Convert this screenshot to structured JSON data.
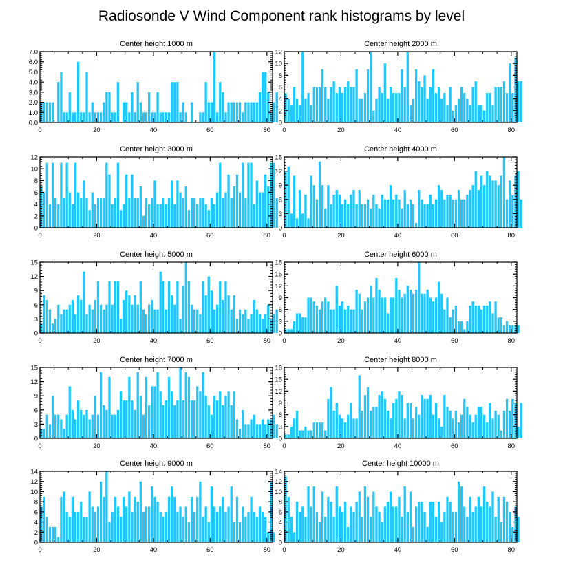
{
  "title": "Radiosonde V Wind Component rank histograms by level",
  "colors": {
    "bar": "#1ec8ff",
    "bar_edge": "#ffffff",
    "frame": "#000000",
    "background": "#ffffff"
  },
  "chart_data": [
    {
      "type": "bar",
      "title": "Center height 1000 m",
      "xlim": [
        0,
        82
      ],
      "ylim": [
        0,
        7
      ],
      "xticks": [
        0,
        20,
        40,
        60,
        80
      ],
      "yticks": [
        0,
        1,
        2,
        3,
        4,
        5,
        6,
        7
      ],
      "ytick_labels": [
        "0.0",
        "1.0",
        "2.0",
        "3.0",
        "4.0",
        "5.0",
        "6.0",
        "7.0"
      ],
      "values": [
        2,
        2,
        2,
        2,
        2,
        0,
        4,
        5,
        1,
        1,
        3,
        1,
        1,
        6,
        1,
        1,
        5,
        1,
        2,
        1,
        1,
        1,
        2,
        3,
        3,
        1,
        1,
        4,
        0,
        2,
        2,
        1,
        3,
        1,
        4,
        2,
        1,
        1,
        3,
        1,
        1,
        3,
        1,
        1,
        1,
        1,
        4,
        4,
        4,
        1,
        2,
        1,
        0,
        2,
        0,
        0,
        1,
        1,
        4,
        2,
        2,
        7,
        1,
        4,
        3,
        1,
        2,
        2,
        2,
        2,
        2,
        1,
        2,
        2,
        2,
        2,
        2,
        3,
        5,
        5,
        3,
        1,
        2,
        3
      ]
    },
    {
      "type": "bar",
      "title": "Center height 2000 m",
      "xlim": [
        0,
        82
      ],
      "ylim": [
        0,
        12
      ],
      "xticks": [
        0,
        20,
        40,
        60,
        80
      ],
      "yticks": [
        0,
        2,
        4,
        6,
        8,
        10,
        12
      ],
      "ytick_labels": [
        "0",
        "2",
        "4",
        "6",
        "8",
        "10",
        "12"
      ],
      "values": [
        5,
        4,
        3,
        6,
        4,
        3,
        12,
        4,
        5,
        3,
        6,
        6,
        6,
        9,
        6,
        4,
        6,
        7,
        5,
        6,
        5,
        6,
        7,
        6,
        6,
        9,
        4,
        4,
        5,
        9,
        12,
        2,
        4,
        6,
        5,
        10,
        4,
        6,
        5,
        5,
        5,
        9,
        6,
        12,
        3,
        4,
        9,
        7,
        6,
        8,
        4,
        6,
        9,
        5,
        6,
        4,
        5,
        3,
        6,
        2,
        3,
        4,
        6,
        5,
        4,
        3,
        6,
        7,
        3,
        3,
        2,
        5,
        5,
        3,
        6,
        6,
        6,
        7,
        5,
        10,
        5,
        11,
        7,
        7
      ]
    },
    {
      "type": "bar",
      "title": "Center height 3000 m",
      "xlim": [
        0,
        82
      ],
      "ylim": [
        0,
        12
      ],
      "xticks": [
        0,
        20,
        40,
        60,
        80
      ],
      "yticks": [
        0,
        2,
        4,
        6,
        8,
        10,
        12
      ],
      "ytick_labels": [
        "0",
        "2",
        "4",
        "6",
        "8",
        "10",
        "12"
      ],
      "values": [
        7,
        6,
        11,
        4,
        11,
        5,
        4,
        11,
        5,
        11,
        6,
        4,
        11,
        6,
        5,
        8,
        5,
        3,
        6,
        4,
        5,
        5,
        5,
        11,
        9,
        4,
        5,
        11,
        3,
        4,
        9,
        5,
        9,
        5,
        5,
        7,
        2,
        5,
        4,
        5,
        8,
        4,
        4,
        5,
        4,
        5,
        8,
        4,
        8,
        6,
        5,
        7,
        3,
        5,
        5,
        4,
        5,
        5,
        4,
        3,
        5,
        4,
        6,
        11,
        5,
        6,
        9,
        5,
        7,
        9,
        6,
        11,
        5,
        11,
        11,
        4,
        8,
        6,
        6,
        9,
        7,
        11,
        11,
        5
      ]
    },
    {
      "type": "bar",
      "title": "Center height 4000 m",
      "xlim": [
        0,
        82
      ],
      "ylim": [
        0,
        15
      ],
      "xticks": [
        0,
        20,
        40,
        60,
        80
      ],
      "yticks": [
        0,
        3,
        6,
        9,
        12,
        15
      ],
      "ytick_labels": [
        "0",
        "3",
        "6",
        "9",
        "12",
        "15"
      ],
      "values": [
        12,
        13,
        3,
        11,
        2,
        8,
        3,
        7,
        2,
        11,
        9,
        6,
        14,
        9,
        4,
        9,
        5,
        7,
        8,
        7,
        5,
        6,
        5,
        7,
        8,
        5,
        8,
        5,
        5,
        6,
        4,
        7,
        5,
        4,
        7,
        6,
        6,
        9,
        6,
        7,
        6,
        4,
        8,
        5,
        6,
        5,
        1,
        8,
        6,
        5,
        5,
        7,
        5,
        6,
        9,
        8,
        6,
        7,
        7,
        6,
        6,
        8,
        6,
        6,
        7,
        8,
        9,
        12,
        8,
        11,
        9,
        12,
        11,
        10,
        10,
        9,
        11,
        15,
        6,
        10,
        7,
        11,
        12,
        6
      ]
    },
    {
      "type": "bar",
      "title": "Center height 5000 m",
      "xlim": [
        0,
        82
      ],
      "ylim": [
        0,
        15
      ],
      "xticks": [
        0,
        20,
        40,
        60,
        80
      ],
      "yticks": [
        0,
        3,
        6,
        9,
        12,
        15
      ],
      "ytick_labels": [
        "0",
        "3",
        "6",
        "9",
        "12",
        "15"
      ],
      "values": [
        2,
        8,
        7,
        5,
        2,
        3,
        6,
        4,
        5,
        5,
        6,
        7,
        4,
        8,
        7,
        13,
        4,
        6,
        5,
        7,
        11,
        6,
        5,
        6,
        11,
        6,
        11,
        11,
        3,
        7,
        9,
        8,
        6,
        8,
        6,
        11,
        5,
        4,
        6,
        7,
        5,
        5,
        13,
        11,
        5,
        11,
        8,
        6,
        11,
        3,
        10,
        15,
        11,
        6,
        5,
        5,
        4,
        11,
        8,
        12,
        9,
        5,
        6,
        11,
        7,
        11,
        8,
        5,
        8,
        3,
        5,
        4,
        5,
        3,
        4,
        7,
        5,
        4,
        3,
        4,
        6,
        3,
        4,
        5
      ]
    },
    {
      "type": "bar",
      "title": "Center height 6000 m",
      "xlim": [
        0,
        82
      ],
      "ylim": [
        0,
        18
      ],
      "xticks": [
        0,
        20,
        40,
        60,
        80
      ],
      "yticks": [
        0,
        3,
        6,
        9,
        12,
        15,
        18
      ],
      "ytick_labels": [
        "0",
        "3",
        "6",
        "9",
        "12",
        "15",
        "18"
      ],
      "values": [
        1,
        1,
        1,
        3,
        5,
        5,
        4,
        4,
        9,
        9,
        8,
        7,
        6,
        8,
        9,
        8,
        6,
        6,
        12,
        7,
        8,
        6,
        7,
        6,
        6,
        11,
        10,
        6,
        8,
        9,
        12,
        9,
        14,
        11,
        9,
        9,
        5,
        9,
        9,
        14,
        11,
        9,
        10,
        12,
        11,
        10,
        11,
        18,
        10,
        10,
        11,
        9,
        8,
        9,
        13,
        10,
        6,
        9,
        4,
        6,
        7,
        3,
        3,
        1,
        3,
        7,
        8,
        7,
        7,
        6,
        7,
        7,
        8,
        5,
        8,
        4,
        4,
        2,
        3,
        2,
        2,
        2,
        2
      ]
    },
    {
      "type": "bar",
      "title": "Center height 7000 m",
      "xlim": [
        0,
        82
      ],
      "ylim": [
        0,
        15
      ],
      "xticks": [
        0,
        20,
        40,
        60,
        80
      ],
      "yticks": [
        0,
        3,
        6,
        9,
        12,
        15
      ],
      "ytick_labels": [
        "0",
        "3",
        "6",
        "9",
        "12",
        "15"
      ],
      "values": [
        2,
        2,
        5,
        3,
        9,
        5,
        5,
        4,
        2,
        5,
        11,
        6,
        4,
        8,
        6,
        5,
        6,
        4,
        5,
        9,
        5,
        14,
        7,
        6,
        13,
        5,
        5,
        6,
        10,
        8,
        8,
        13,
        8,
        6,
        14,
        9,
        5,
        13,
        7,
        11,
        11,
        14,
        10,
        7,
        8,
        13,
        10,
        7,
        8,
        15,
        8,
        14,
        13,
        8,
        8,
        11,
        10,
        14,
        9,
        7,
        5,
        9,
        8,
        10,
        7,
        9,
        10,
        7,
        10,
        4,
        2,
        6,
        3,
        3,
        4,
        5,
        3,
        3,
        4,
        3,
        4,
        4,
        5,
        3
      ]
    },
    {
      "type": "bar",
      "title": "Center height 8000 m",
      "xlim": [
        0,
        82
      ],
      "ylim": [
        0,
        18
      ],
      "xticks": [
        0,
        20,
        40,
        60,
        80
      ],
      "yticks": [
        0,
        3,
        6,
        9,
        12,
        15,
        18
      ],
      "ytick_labels": [
        "0",
        "3",
        "6",
        "9",
        "12",
        "15",
        "18"
      ],
      "values": [
        1,
        1,
        3,
        5,
        7,
        2,
        2,
        3,
        2,
        2,
        4,
        4,
        4,
        4,
        2,
        10,
        13,
        7,
        9,
        6,
        5,
        4,
        6,
        9,
        5,
        5,
        16,
        7,
        11,
        13,
        7,
        8,
        8,
        11,
        12,
        10,
        7,
        5,
        9,
        10,
        12,
        11,
        5,
        9,
        9,
        5,
        8,
        6,
        11,
        10,
        10,
        11,
        6,
        9,
        5,
        3,
        11,
        8,
        7,
        5,
        7,
        4,
        6,
        10,
        8,
        6,
        4,
        6,
        8,
        8,
        6,
        4,
        9,
        5,
        7,
        6,
        2,
        7,
        10,
        7,
        10,
        9,
        3,
        9
      ]
    },
    {
      "type": "bar",
      "title": "Center height 9000 m",
      "xlim": [
        0,
        82
      ],
      "ylim": [
        0,
        14
      ],
      "xticks": [
        0,
        20,
        40,
        60,
        80
      ],
      "yticks": [
        0,
        2,
        4,
        6,
        8,
        10,
        12,
        14
      ],
      "ytick_labels": [
        "0",
        "2",
        "4",
        "6",
        "8",
        "10",
        "12",
        "14"
      ],
      "values": [
        7,
        9,
        5,
        3,
        3,
        3,
        1,
        9,
        10,
        6,
        5,
        9,
        6,
        6,
        8,
        5,
        5,
        10,
        7,
        6,
        7,
        12,
        9,
        14,
        4,
        6,
        9,
        7,
        5,
        9,
        7,
        10,
        6,
        9,
        8,
        12,
        6,
        7,
        7,
        11,
        9,
        8,
        6,
        5,
        6,
        9,
        11,
        9,
        6,
        7,
        5,
        7,
        4,
        9,
        6,
        9,
        12,
        5,
        7,
        4,
        11,
        7,
        6,
        7,
        9,
        6,
        7,
        11,
        4,
        9,
        4,
        7,
        5,
        6,
        9,
        6,
        5,
        7,
        6,
        5,
        2,
        12,
        2
      ]
    },
    {
      "type": "bar",
      "title": "Center height 10000 m",
      "xlim": [
        0,
        82
      ],
      "ylim": [
        0,
        14
      ],
      "xticks": [
        0,
        20,
        40,
        60,
        80
      ],
      "yticks": [
        0,
        2,
        4,
        6,
        8,
        10,
        12,
        14
      ],
      "ytick_labels": [
        "0",
        "2",
        "4",
        "6",
        "8",
        "10",
        "12",
        "14"
      ],
      "values": [
        13,
        9,
        5,
        2,
        8,
        6,
        7,
        5,
        11,
        7,
        11,
        6,
        4,
        10,
        5,
        9,
        8,
        5,
        11,
        7,
        6,
        8,
        3,
        7,
        6,
        8,
        10,
        5,
        11,
        9,
        5,
        10,
        7,
        6,
        4,
        7,
        8,
        10,
        7,
        7,
        9,
        5,
        11,
        6,
        10,
        3,
        7,
        8,
        8,
        6,
        3,
        8,
        8,
        5,
        8,
        4,
        6,
        9,
        8,
        6,
        6,
        12,
        11,
        7,
        5,
        9,
        6,
        7,
        9,
        7,
        11,
        8,
        7,
        10,
        5,
        9,
        4,
        9,
        8,
        6,
        3,
        7,
        5
      ]
    }
  ]
}
